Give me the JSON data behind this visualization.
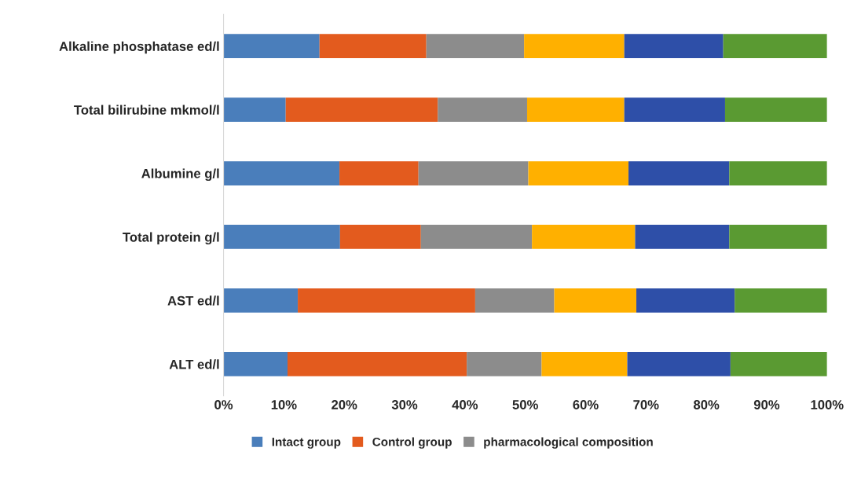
{
  "chart_data": {
    "type": "bar",
    "orientation": "horizontal",
    "stacked": true,
    "categories": [
      "Alkaline phosphatase ed/l",
      "Total bilirubine mkmol/l",
      "Albumine g/l",
      "Total protein g/l",
      "AST ed/l",
      "ALT ed/l"
    ],
    "series": [
      {
        "name": "Intact group",
        "color": "#4a7ebb",
        "values": [
          15.9,
          10.3,
          19.2,
          19.3,
          12.3,
          10.6
        ]
      },
      {
        "name": "Control group",
        "color": "#e35b1e",
        "values": [
          17.7,
          25.2,
          13.1,
          13.4,
          29.4,
          29.7
        ]
      },
      {
        "name": "pharmacological composition",
        "color": "#8c8c8c",
        "values": [
          16.2,
          14.8,
          18.2,
          18.4,
          13.1,
          12.4
        ]
      },
      {
        "color": "#ffb000",
        "values": [
          16.6,
          16.1,
          16.6,
          17.1,
          13.6,
          14.2
        ]
      },
      {
        "color": "#2e4fa8",
        "values": [
          16.4,
          16.7,
          16.7,
          15.6,
          16.3,
          17.1
        ]
      },
      {
        "color": "#5a9a32",
        "values": [
          17.2,
          16.9,
          16.2,
          16.2,
          15.3,
          16.0
        ]
      }
    ],
    "xlim": [
      0,
      100
    ],
    "xticks": [
      {
        "value": 0,
        "label": "0%"
      },
      {
        "value": 10,
        "label": "10%"
      },
      {
        "value": 20,
        "label": "20%"
      },
      {
        "value": 30,
        "label": "30%"
      },
      {
        "value": 40,
        "label": "40%"
      },
      {
        "value": 50,
        "label": "50%"
      },
      {
        "value": 60,
        "label": "60%"
      },
      {
        "value": 70,
        "label": "70%"
      },
      {
        "value": 80,
        "label": "80%"
      },
      {
        "value": 90,
        "label": "90%"
      },
      {
        "value": 100,
        "label": "100%"
      }
    ],
    "legend": "bottom"
  }
}
